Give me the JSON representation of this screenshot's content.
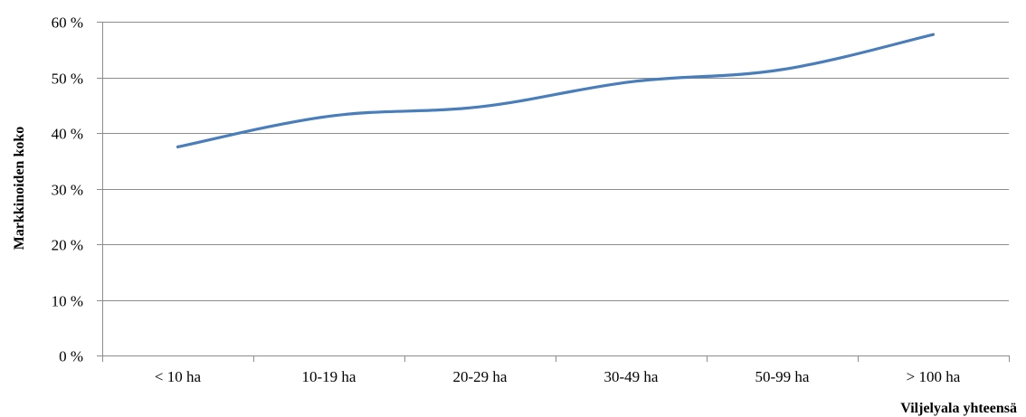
{
  "chart_data": {
    "type": "line",
    "categories": [
      "< 10 ha",
      "10-19 ha",
      "20-29 ha",
      "30-49 ha",
      "50-99 ha",
      "> 100 ha"
    ],
    "series": [
      {
        "values": [
          37.5,
          43,
          44.7,
          49.2,
          51.4,
          57.7
        ],
        "color": "#4a7ebb"
      }
    ],
    "y_tick_labels": [
      "0 %",
      "10 %",
      "20 %",
      "30 %",
      "40 %",
      "50 %",
      "60 %"
    ],
    "y_ticks": [
      0,
      10,
      20,
      30,
      40,
      50,
      60
    ],
    "ylim": [
      0,
      60
    ],
    "xlabel": "Viljelyala yhteensä",
    "ylabel": "Markkinoiden koko",
    "grid": true,
    "legend": "none"
  }
}
